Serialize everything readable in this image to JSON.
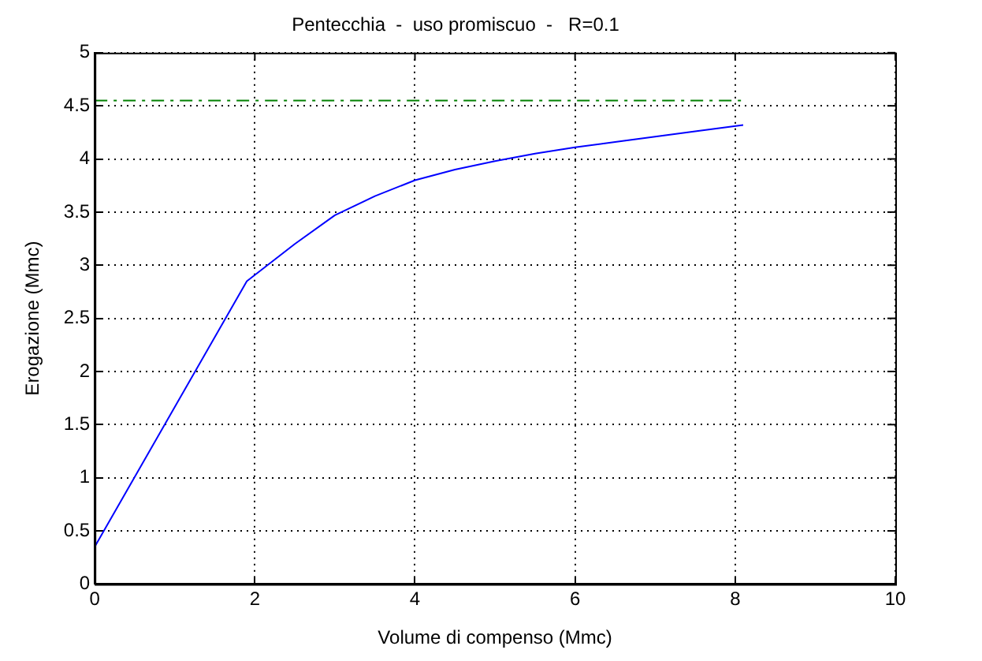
{
  "chart_data": {
    "type": "line",
    "title": "Pentecchia  -  uso promiscuo  -   R=0.1",
    "xlabel": "Volume di compenso (Mmc)",
    "ylabel": "Erogazione (Mmc)",
    "xlim": [
      0,
      10
    ],
    "xticks": [
      0,
      2,
      4,
      6,
      8,
      10
    ],
    "ylim": [
      0,
      5
    ],
    "yticks": [
      0,
      0.5,
      1,
      1.5,
      2,
      2.5,
      3,
      3.5,
      4,
      4.5,
      5
    ],
    "grid": true,
    "marker": "none",
    "series": [
      {
        "color": "#0000ff",
        "line_style": "solid",
        "x": [
          0,
          1.9,
          2.5,
          3,
          3.5,
          4,
          4.5,
          5,
          5.5,
          6,
          6.5,
          7,
          7.5,
          8.1
        ],
        "values": [
          0.35,
          2.85,
          3.2,
          3.47,
          3.65,
          3.8,
          3.9,
          3.98,
          4.05,
          4.11,
          4.16,
          4.21,
          4.26,
          4.32
        ]
      },
      {
        "color": "#008000",
        "line_style": "dashed",
        "x": [
          0,
          8.1
        ],
        "values": [
          4.55,
          4.55
        ]
      }
    ]
  }
}
